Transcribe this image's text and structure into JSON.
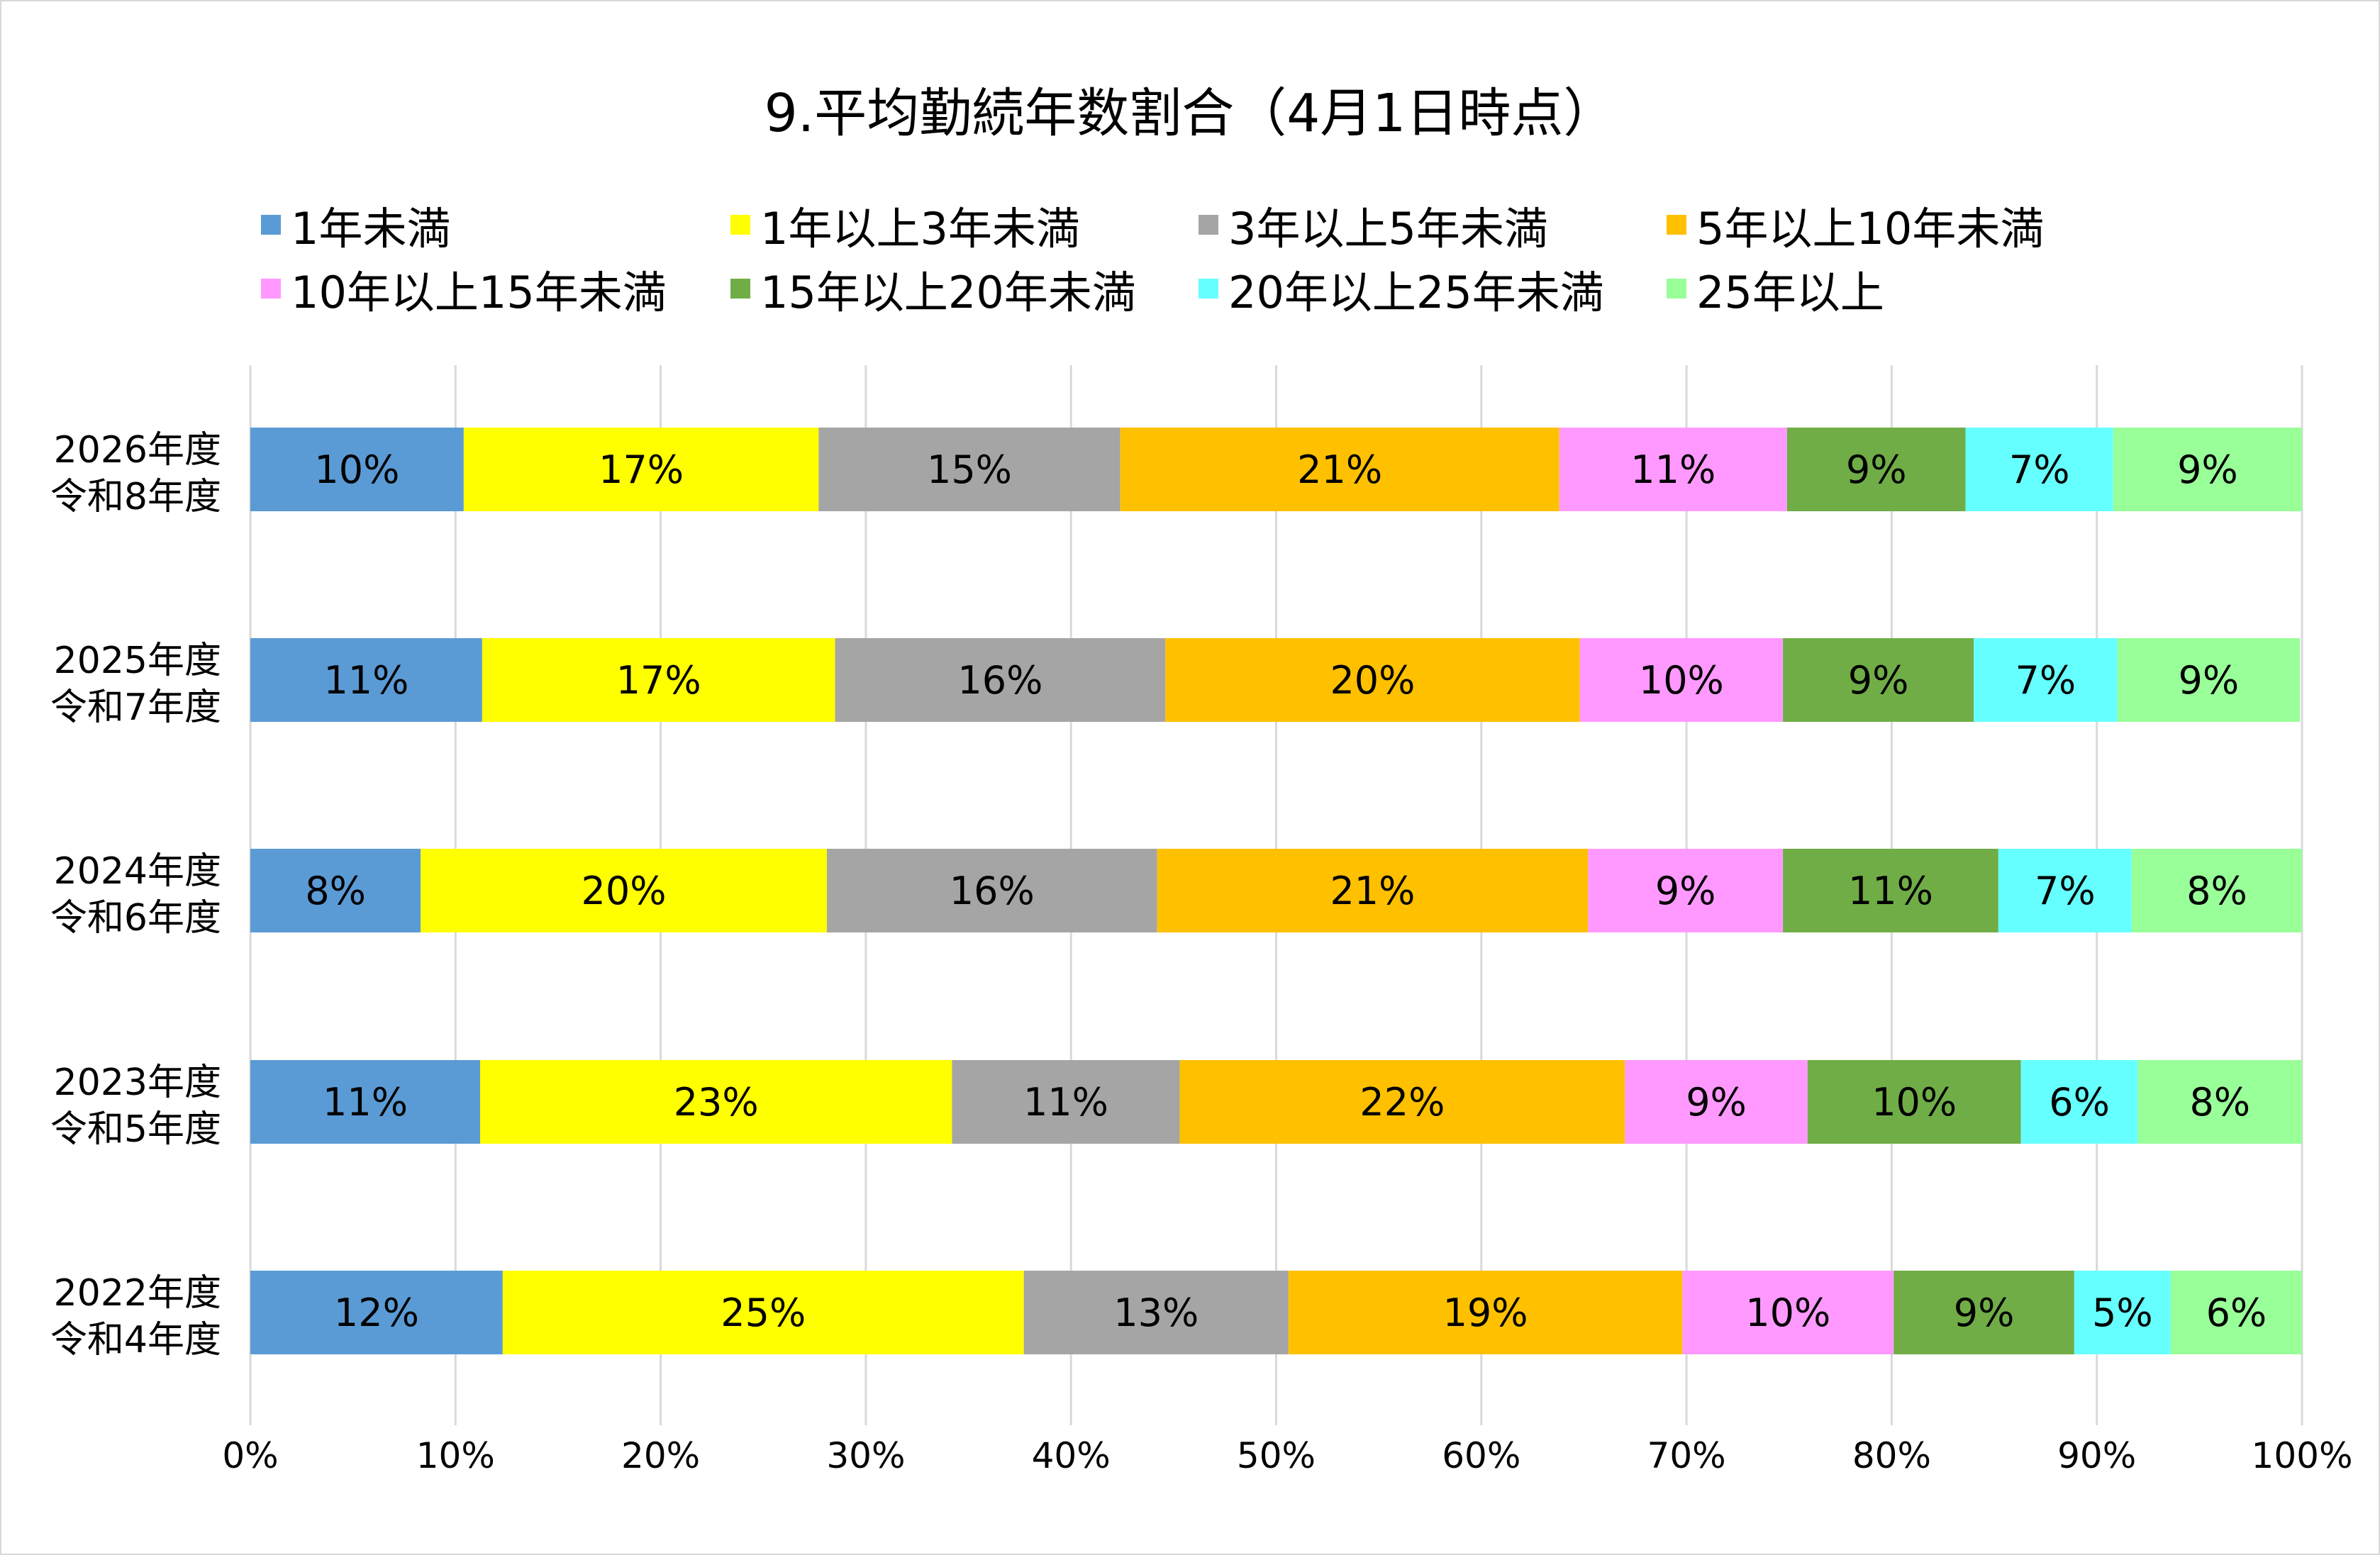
{
  "chart_data": {
    "type": "bar",
    "orientation": "horizontal",
    "stacked": "100%",
    "title": "9.平均勤続年数割合（4月1日時点）",
    "categories": [
      [
        "2026年度",
        "令和8年度"
      ],
      [
        "2025年度",
        "令和7年度"
      ],
      [
        "2024年度",
        "令和6年度"
      ],
      [
        "2023年度",
        "令和5年度"
      ],
      [
        "2022年度",
        "令和4年度"
      ]
    ],
    "series": [
      {
        "name": "1年未満",
        "color": "#5b9bd5",
        "values": [
          10.4,
          11.3,
          8.3,
          11.2,
          12.3
        ],
        "labels": [
          "10%",
          "11%",
          "8%",
          "11%",
          "12%"
        ]
      },
      {
        "name": "1年以上3年未満",
        "color": "#ffff00",
        "values": [
          17.3,
          17.2,
          19.8,
          23.0,
          25.4
        ],
        "labels": [
          "17%",
          "17%",
          "20%",
          "23%",
          "25%"
        ]
      },
      {
        "name": "3年以上5年未満",
        "color": "#a5a5a5",
        "values": [
          14.7,
          16.1,
          16.1,
          11.1,
          12.9
        ],
        "labels": [
          "15%",
          "16%",
          "16%",
          "11%",
          "13%"
        ]
      },
      {
        "name": "5年以上10年未満",
        "color": "#ffc000",
        "values": [
          21.4,
          20.2,
          21.0,
          21.7,
          19.2
        ],
        "labels": [
          "21%",
          "20%",
          "21%",
          "22%",
          "19%"
        ]
      },
      {
        "name": "10年以上15年未満",
        "color": "#ff99ff",
        "values": [
          11.1,
          9.9,
          9.5,
          8.9,
          10.3
        ],
        "labels": [
          "11%",
          "10%",
          "9%",
          "9%",
          "10%"
        ]
      },
      {
        "name": "15年以上20年未満",
        "color": "#70ad47",
        "values": [
          8.7,
          9.3,
          10.5,
          10.4,
          8.8
        ],
        "labels": [
          "9%",
          "9%",
          "11%",
          "10%",
          "9%"
        ]
      },
      {
        "name": "20年以上25年未満",
        "color": "#66ffff",
        "values": [
          7.2,
          7.0,
          6.5,
          5.7,
          4.7
        ],
        "labels": [
          "7%",
          "7%",
          "7%",
          "6%",
          "5%"
        ]
      },
      {
        "name": "25年以上",
        "color": "#99ff99",
        "values": [
          9.2,
          8.9,
          8.3,
          8.0,
          6.4
        ],
        "labels": [
          "9%",
          "9%",
          "8%",
          "8%",
          "6%"
        ]
      }
    ],
    "xlim": [
      0,
      100
    ],
    "x_ticks": [
      "0%",
      "10%",
      "20%",
      "30%",
      "40%",
      "50%",
      "60%",
      "70%",
      "80%",
      "90%",
      "100%"
    ],
    "grid": "vertical",
    "legend_position": "top"
  }
}
